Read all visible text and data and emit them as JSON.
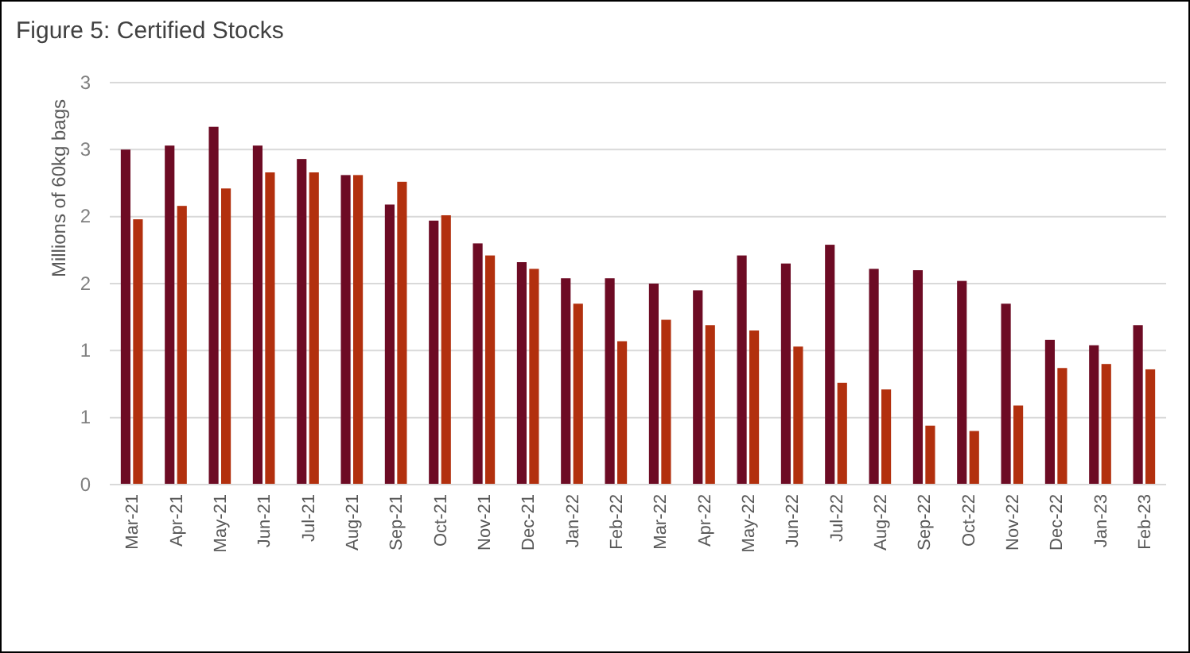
{
  "chart_data": {
    "type": "bar",
    "title": "Figure 5: Certified Stocks",
    "ylabel": "Millions of 60kg bags",
    "categories": [
      "Mar-21",
      "Apr-21",
      "May-21",
      "Jun-21",
      "Jul-21",
      "Aug-21",
      "Sep-21",
      "Oct-21",
      "Nov-21",
      "Dec-21",
      "Jan-22",
      "Feb-22",
      "Mar-22",
      "Apr-22",
      "May-22",
      "Jun-22",
      "Jul-22",
      "Aug-22",
      "Sep-22",
      "Oct-22",
      "Nov-22",
      "Dec-22",
      "Jan-23",
      "Feb-23"
    ],
    "series": [
      {
        "color": "#6d0b24",
        "values": [
          2.5,
          2.53,
          2.67,
          2.53,
          2.43,
          2.31,
          2.09,
          1.97,
          1.8,
          1.66,
          1.54,
          1.54,
          1.5,
          1.45,
          1.71,
          1.65,
          1.79,
          1.61,
          1.6,
          1.52,
          1.35,
          1.08,
          1.04,
          1.19
        ]
      },
      {
        "color": "#b2300e",
        "values": [
          1.98,
          2.08,
          2.21,
          2.33,
          2.33,
          2.31,
          2.26,
          2.01,
          1.71,
          1.61,
          1.35,
          1.07,
          1.23,
          1.19,
          1.15,
          1.03,
          0.76,
          0.71,
          0.44,
          0.4,
          0.59,
          0.87,
          0.9,
          0.86
        ]
      }
    ],
    "ylim": [
      0,
      3
    ],
    "yticks": [
      0,
      {
        "value": 0.5,
        "label": "1"
      },
      1,
      {
        "value": 1.5,
        "label": "2"
      },
      2,
      {
        "value": 2.5,
        "label": "3"
      },
      3
    ],
    "grid": "y"
  }
}
